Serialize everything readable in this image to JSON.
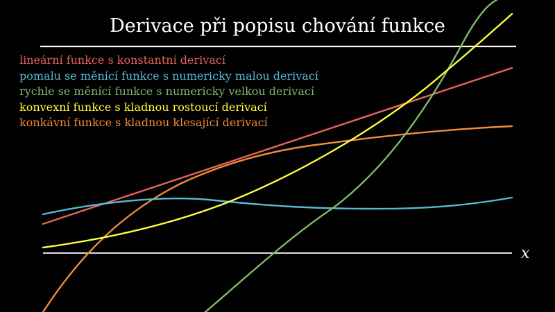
{
  "title": "Derivace při popisu chování funkce",
  "axis_label": "x",
  "colors": {
    "background": "#000000",
    "axis": "#ffffff",
    "linear": "#e8645a",
    "slow": "#5ab8d6",
    "fast": "#7fba6a",
    "convex": "#ffff3c",
    "concave": "#f08c3c"
  },
  "legend": [
    {
      "text": "lineární funkce s konstantní derivací",
      "color": "#e8645a"
    },
    {
      "text": "pomalu se měnící funkce s numericky malou derivací",
      "color": "#5ab8d6"
    },
    {
      "text": "rychle se měnící funkce s numericky velkou derivací",
      "color": "#7fba6a"
    },
    {
      "text": "konvexní funkce s kladnou rostoucí derivací",
      "color": "#ffff3c"
    },
    {
      "text": "konkávní funkce s kladnou klesající derivací",
      "color": "#f08c3c"
    }
  ]
}
